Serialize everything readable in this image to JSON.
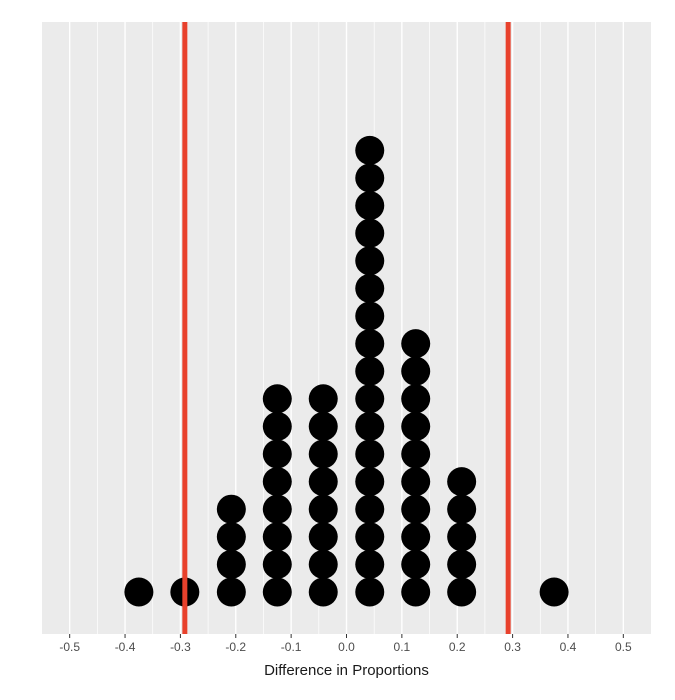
{
  "chart_data": {
    "type": "dotplot",
    "title": "",
    "xlabel": "Difference in Proportions",
    "ylabel": "",
    "xlim": [
      -0.55,
      0.55
    ],
    "x_ticks": [
      -0.5,
      -0.4,
      -0.3,
      -0.2,
      -0.1,
      0.0,
      0.1,
      0.2,
      0.3,
      0.4,
      0.5
    ],
    "x_tick_labels": [
      "-0.5",
      "-0.4",
      "-0.3",
      "-0.2",
      "-0.1",
      "0.0",
      "0.1",
      "0.2",
      "0.3",
      "0.4",
      "0.5"
    ],
    "grid": true,
    "y_axis_shown": false,
    "stacks": [
      {
        "x": -0.375,
        "count": 1
      },
      {
        "x": -0.292,
        "count": 1
      },
      {
        "x": -0.208,
        "count": 4
      },
      {
        "x": -0.125,
        "count": 8
      },
      {
        "x": -0.042,
        "count": 8
      },
      {
        "x": 0.042,
        "count": 17
      },
      {
        "x": 0.125,
        "count": 10
      },
      {
        "x": 0.208,
        "count": 5
      },
      {
        "x": 0.375,
        "count": 1
      }
    ],
    "reference_lines": [
      {
        "x": -0.292,
        "color": "#e8412c"
      },
      {
        "x": 0.292,
        "color": "#e8412c"
      }
    ],
    "colors": {
      "panel": "#ebebeb",
      "grid": "#ffffff",
      "dot": "#000000"
    }
  }
}
